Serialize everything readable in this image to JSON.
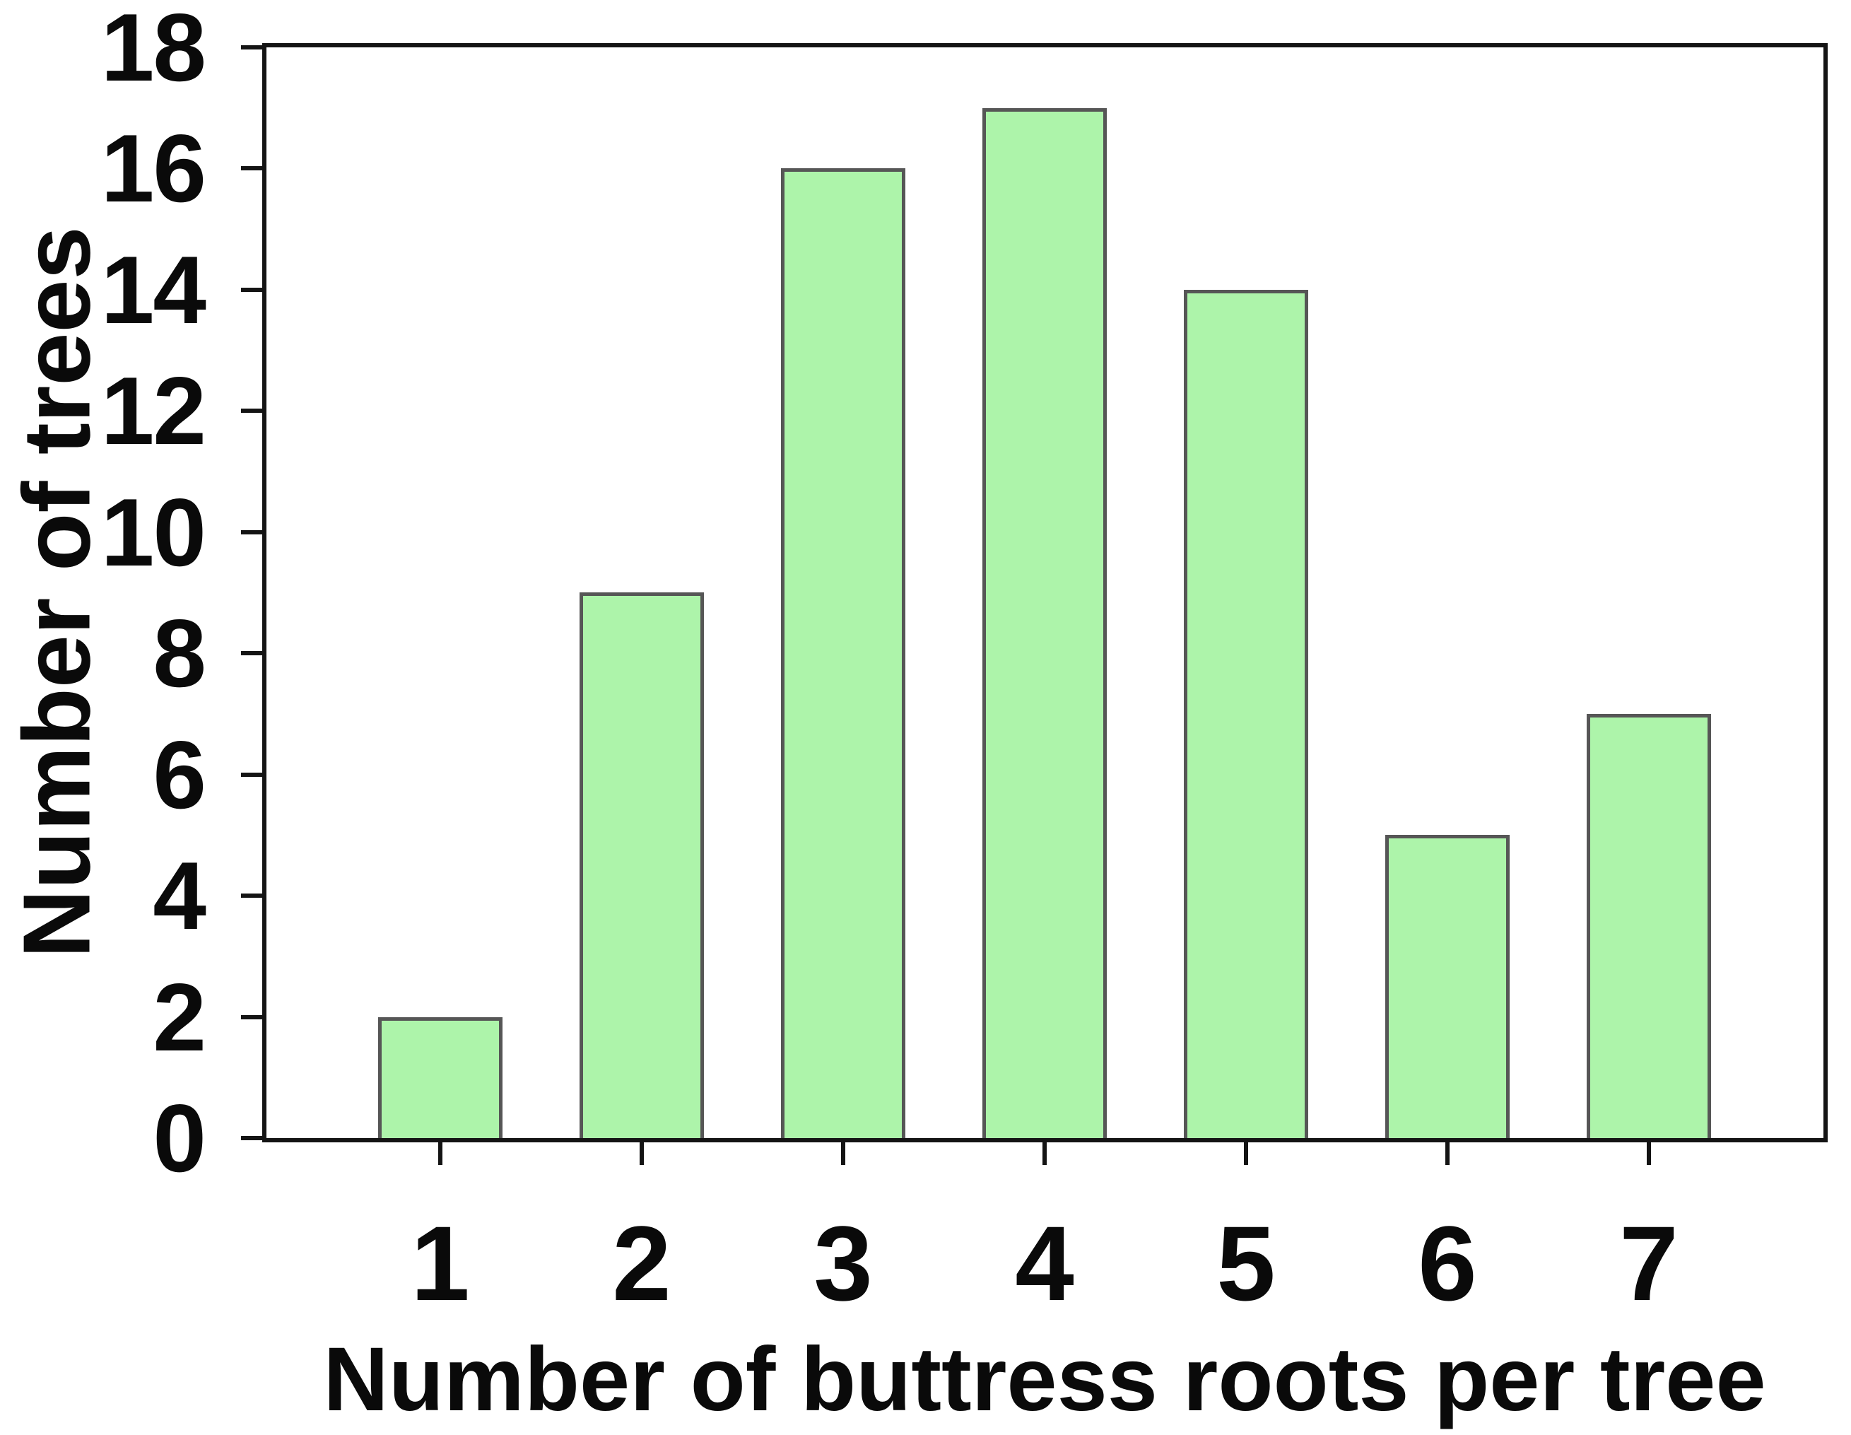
{
  "chart_data": {
    "type": "bar",
    "categories": [
      "1",
      "2",
      "3",
      "4",
      "5",
      "6",
      "7"
    ],
    "values": [
      2,
      9,
      16,
      17,
      14,
      5,
      7
    ],
    "title": "",
    "xlabel": "Number of buttress roots per tree",
    "ylabel": "Number of trees",
    "ylim": [
      0,
      18
    ],
    "ytick_step": 2,
    "ytick_labels": [
      "0",
      "2",
      "4",
      "6",
      "8",
      "10",
      "12",
      "14",
      "16",
      "18"
    ],
    "grid": false,
    "legend": "none",
    "colors": {
      "bar_fill": "#adf4aa",
      "bar_edge": "#565656",
      "axis": "#141414",
      "text": "#0a0a0a",
      "background": "#ffffff"
    }
  }
}
